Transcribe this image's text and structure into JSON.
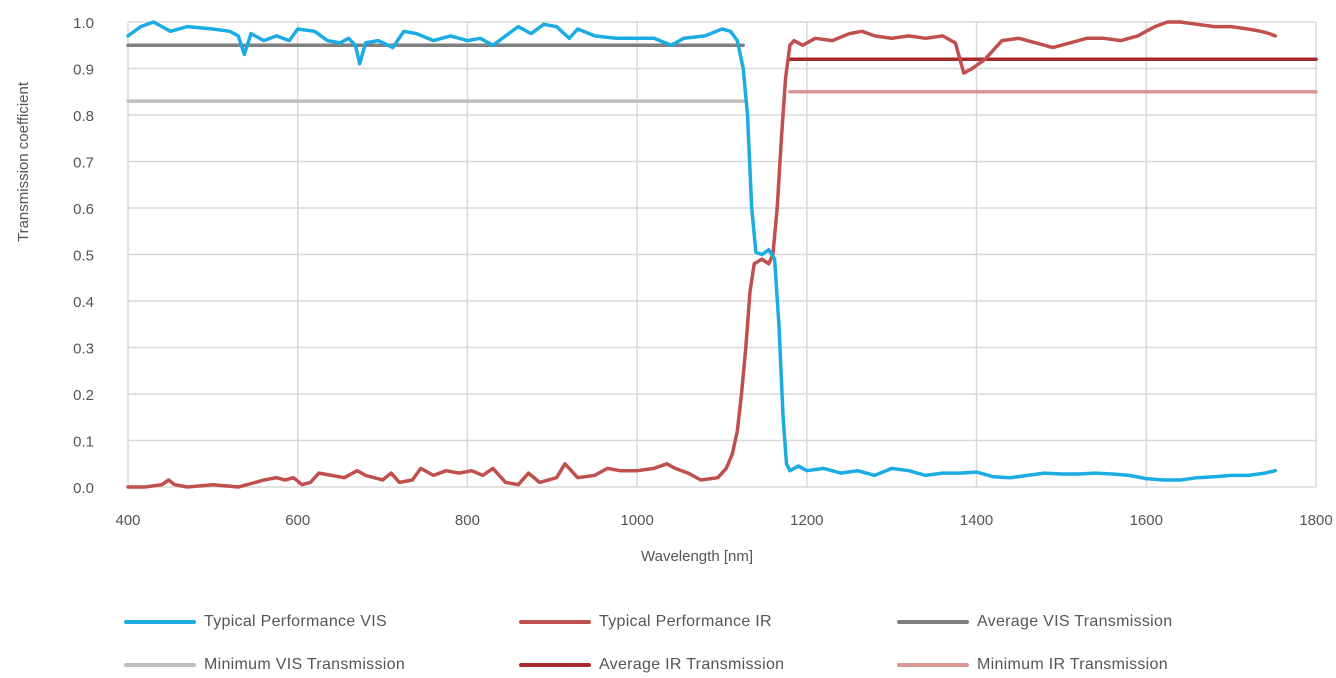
{
  "chart_data": {
    "type": "line",
    "xlabel": "Wavelength [nm]",
    "ylabel": "Transmission coefficient",
    "xlim": [
      400,
      1800
    ],
    "ylim": [
      0,
      1.0
    ],
    "x_ticks": [
      "400",
      "600",
      "800",
      "1000",
      "1200",
      "1400",
      "1600",
      "1800"
    ],
    "y_ticks": [
      "0.0",
      "0.1",
      "0.2",
      "0.3",
      "0.4",
      "0.5",
      "0.6",
      "0.7",
      "0.8",
      "0.9",
      "1.0"
    ],
    "grid": true,
    "legend_position": "bottom",
    "series": [
      {
        "name": "Typical Performance VIS",
        "color": "#1BACE4",
        "points": [
          [
            400,
            0.97
          ],
          [
            415,
            0.99
          ],
          [
            430,
            1.0
          ],
          [
            440,
            0.99
          ],
          [
            450,
            0.98
          ],
          [
            470,
            0.99
          ],
          [
            500,
            0.985
          ],
          [
            520,
            0.98
          ],
          [
            530,
            0.97
          ],
          [
            537,
            0.93
          ],
          [
            545,
            0.975
          ],
          [
            560,
            0.96
          ],
          [
            575,
            0.97
          ],
          [
            590,
            0.96
          ],
          [
            600,
            0.985
          ],
          [
            620,
            0.98
          ],
          [
            635,
            0.96
          ],
          [
            650,
            0.955
          ],
          [
            660,
            0.965
          ],
          [
            668,
            0.95
          ],
          [
            673,
            0.91
          ],
          [
            680,
            0.955
          ],
          [
            695,
            0.96
          ],
          [
            712,
            0.945
          ],
          [
            725,
            0.98
          ],
          [
            740,
            0.975
          ],
          [
            760,
            0.96
          ],
          [
            780,
            0.97
          ],
          [
            800,
            0.96
          ],
          [
            815,
            0.965
          ],
          [
            830,
            0.95
          ],
          [
            845,
            0.97
          ],
          [
            860,
            0.99
          ],
          [
            875,
            0.975
          ],
          [
            890,
            0.995
          ],
          [
            905,
            0.99
          ],
          [
            920,
            0.965
          ],
          [
            930,
            0.985
          ],
          [
            950,
            0.97
          ],
          [
            975,
            0.965
          ],
          [
            1000,
            0.965
          ],
          [
            1020,
            0.965
          ],
          [
            1040,
            0.95
          ],
          [
            1055,
            0.965
          ],
          [
            1080,
            0.97
          ],
          [
            1100,
            0.985
          ],
          [
            1110,
            0.98
          ],
          [
            1118,
            0.96
          ],
          [
            1125,
            0.9
          ],
          [
            1130,
            0.8
          ],
          [
            1135,
            0.6
          ],
          [
            1140,
            0.505
          ],
          [
            1147,
            0.5
          ],
          [
            1155,
            0.51
          ],
          [
            1162,
            0.49
          ],
          [
            1167,
            0.35
          ],
          [
            1172,
            0.15
          ],
          [
            1176,
            0.05
          ],
          [
            1180,
            0.035
          ],
          [
            1190,
            0.045
          ],
          [
            1200,
            0.035
          ],
          [
            1220,
            0.04
          ],
          [
            1240,
            0.03
          ],
          [
            1260,
            0.035
          ],
          [
            1280,
            0.025
          ],
          [
            1300,
            0.04
          ],
          [
            1320,
            0.035
          ],
          [
            1340,
            0.025
          ],
          [
            1360,
            0.03
          ],
          [
            1380,
            0.03
          ],
          [
            1400,
            0.032
          ],
          [
            1420,
            0.022
          ],
          [
            1440,
            0.02
          ],
          [
            1460,
            0.025
          ],
          [
            1480,
            0.03
          ],
          [
            1500,
            0.028
          ],
          [
            1520,
            0.028
          ],
          [
            1540,
            0.03
          ],
          [
            1560,
            0.028
          ],
          [
            1580,
            0.025
          ],
          [
            1600,
            0.018
          ],
          [
            1620,
            0.015
          ],
          [
            1640,
            0.015
          ],
          [
            1660,
            0.02
          ],
          [
            1680,
            0.022
          ],
          [
            1700,
            0.025
          ],
          [
            1720,
            0.025
          ],
          [
            1740,
            0.03
          ],
          [
            1752,
            0.035
          ]
        ]
      },
      {
        "name": "Typical Performance IR",
        "color": "#C0504D",
        "points": [
          [
            400,
            0.0
          ],
          [
            420,
            0.0
          ],
          [
            440,
            0.005
          ],
          [
            448,
            0.015
          ],
          [
            455,
            0.005
          ],
          [
            470,
            0.0
          ],
          [
            500,
            0.005
          ],
          [
            530,
            0.0
          ],
          [
            550,
            0.01
          ],
          [
            560,
            0.015
          ],
          [
            575,
            0.02
          ],
          [
            585,
            0.015
          ],
          [
            595,
            0.02
          ],
          [
            605,
            0.005
          ],
          [
            615,
            0.01
          ],
          [
            625,
            0.03
          ],
          [
            640,
            0.025
          ],
          [
            655,
            0.02
          ],
          [
            670,
            0.035
          ],
          [
            680,
            0.025
          ],
          [
            690,
            0.02
          ],
          [
            700,
            0.015
          ],
          [
            710,
            0.03
          ],
          [
            720,
            0.01
          ],
          [
            735,
            0.015
          ],
          [
            745,
            0.04
          ],
          [
            760,
            0.025
          ],
          [
            775,
            0.035
          ],
          [
            790,
            0.03
          ],
          [
            805,
            0.035
          ],
          [
            818,
            0.025
          ],
          [
            830,
            0.04
          ],
          [
            845,
            0.01
          ],
          [
            860,
            0.005
          ],
          [
            872,
            0.03
          ],
          [
            885,
            0.01
          ],
          [
            905,
            0.02
          ],
          [
            915,
            0.05
          ],
          [
            930,
            0.02
          ],
          [
            950,
            0.025
          ],
          [
            965,
            0.04
          ],
          [
            980,
            0.035
          ],
          [
            1000,
            0.035
          ],
          [
            1020,
            0.04
          ],
          [
            1035,
            0.05
          ],
          [
            1045,
            0.04
          ],
          [
            1060,
            0.03
          ],
          [
            1075,
            0.015
          ],
          [
            1095,
            0.02
          ],
          [
            1105,
            0.04
          ],
          [
            1112,
            0.07
          ],
          [
            1118,
            0.12
          ],
          [
            1123,
            0.2
          ],
          [
            1128,
            0.3
          ],
          [
            1133,
            0.42
          ],
          [
            1138,
            0.48
          ],
          [
            1147,
            0.49
          ],
          [
            1155,
            0.48
          ],
          [
            1160,
            0.5
          ],
          [
            1165,
            0.6
          ],
          [
            1170,
            0.75
          ],
          [
            1175,
            0.88
          ],
          [
            1180,
            0.95
          ],
          [
            1185,
            0.96
          ],
          [
            1195,
            0.95
          ],
          [
            1210,
            0.965
          ],
          [
            1230,
            0.96
          ],
          [
            1250,
            0.975
          ],
          [
            1265,
            0.98
          ],
          [
            1280,
            0.97
          ],
          [
            1300,
            0.965
          ],
          [
            1320,
            0.97
          ],
          [
            1340,
            0.965
          ],
          [
            1360,
            0.97
          ],
          [
            1375,
            0.955
          ],
          [
            1385,
            0.89
          ],
          [
            1395,
            0.9
          ],
          [
            1410,
            0.92
          ],
          [
            1430,
            0.96
          ],
          [
            1450,
            0.965
          ],
          [
            1470,
            0.955
          ],
          [
            1490,
            0.945
          ],
          [
            1510,
            0.955
          ],
          [
            1530,
            0.965
          ],
          [
            1550,
            0.965
          ],
          [
            1570,
            0.96
          ],
          [
            1590,
            0.97
          ],
          [
            1610,
            0.99
          ],
          [
            1625,
            1.0
          ],
          [
            1640,
            1.0
          ],
          [
            1660,
            0.995
          ],
          [
            1680,
            0.99
          ],
          [
            1700,
            0.99
          ],
          [
            1720,
            0.985
          ],
          [
            1735,
            0.98
          ],
          [
            1745,
            0.975
          ],
          [
            1752,
            0.97
          ]
        ]
      },
      {
        "name": "Average VIS Transmission",
        "color": "#7F7F7F",
        "points": [
          [
            400,
            0.95
          ],
          [
            1125,
            0.95
          ]
        ]
      },
      {
        "name": "Minimum VIS Transmission",
        "color": "#BFBFBF",
        "points": [
          [
            400,
            0.83
          ],
          [
            1125,
            0.83
          ]
        ]
      },
      {
        "name": "Average IR Transmission",
        "color": "#A52A2A",
        "points": [
          [
            1180,
            0.92
          ],
          [
            1800,
            0.92
          ]
        ]
      },
      {
        "name": "Minimum IR Transmission",
        "color": "#DA9694",
        "points": [
          [
            1180,
            0.85
          ],
          [
            1800,
            0.85
          ]
        ]
      }
    ]
  }
}
